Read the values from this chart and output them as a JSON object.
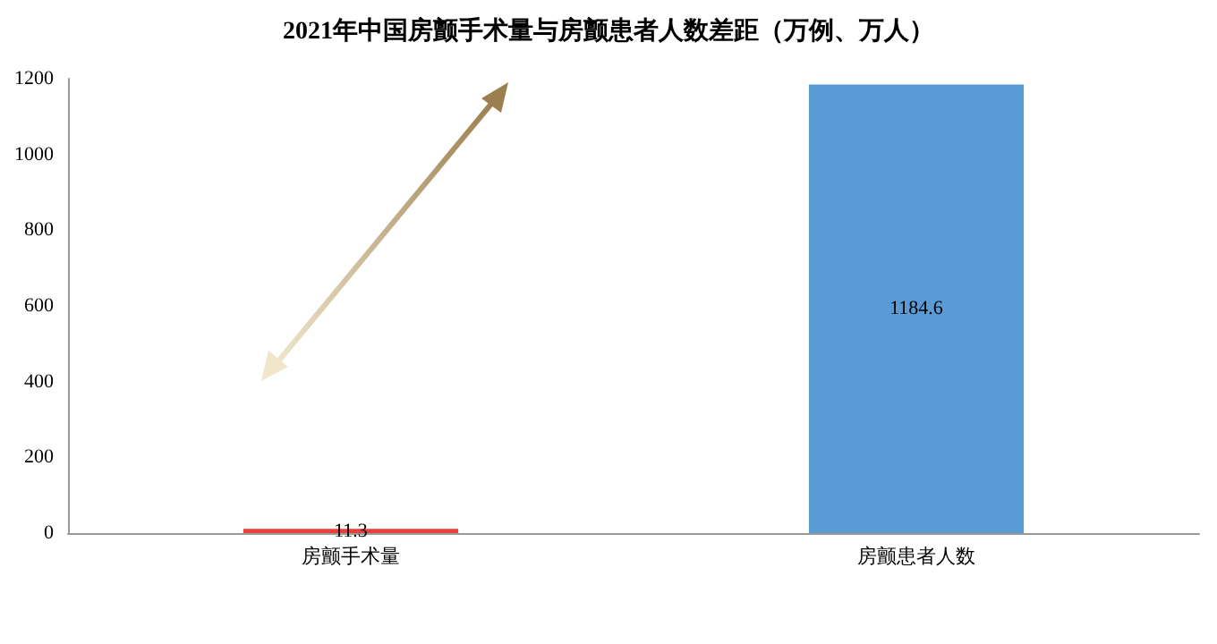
{
  "chart_data": {
    "type": "bar",
    "title": "2021年中国房颤手术量与房颤患者人数差距（万例、万人）",
    "categories": [
      "房颤手术量",
      "房颤患者人数"
    ],
    "values": [
      11.3,
      1184.6
    ],
    "colors": [
      "#e8413a",
      "#5b9bd5"
    ],
    "ylim": [
      0,
      1200
    ],
    "yticks": [
      0,
      200,
      400,
      600,
      800,
      1000,
      1200
    ],
    "grid": false,
    "data_labels": true
  }
}
